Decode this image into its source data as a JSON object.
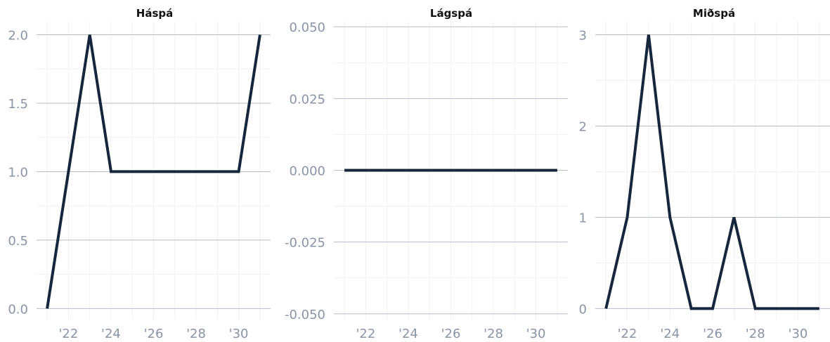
{
  "chart_data": [
    {
      "type": "line",
      "title": "Háspá",
      "x": [
        2021,
        2022,
        2023,
        2024,
        2025,
        2026,
        2027,
        2028,
        2029,
        2030,
        2031
      ],
      "series": [
        {
          "values": [
            0,
            1,
            2,
            1,
            1,
            1,
            1,
            1,
            1,
            1,
            2
          ]
        }
      ],
      "xticks": [
        2022,
        2024,
        2026,
        2028,
        2030
      ],
      "xtick_labels": [
        "'22",
        "'24",
        "'26",
        "'28",
        "'30"
      ],
      "yticks": [
        0,
        0.5,
        1,
        1.5,
        2
      ],
      "ytick_labels": [
        "0.0",
        "0.5",
        "1.0",
        "1.5",
        "2.0"
      ],
      "xlim": [
        2020.5,
        2031.5
      ],
      "ylim": [
        -0.08,
        2.1
      ],
      "grid": true,
      "color": "#17263c"
    },
    {
      "type": "line",
      "title": "Lágspá",
      "x": [
        2021,
        2022,
        2023,
        2024,
        2025,
        2026,
        2027,
        2028,
        2029,
        2030,
        2031
      ],
      "series": [
        {
          "values": [
            0,
            0,
            0,
            0,
            0,
            0,
            0,
            0,
            0,
            0,
            0
          ]
        }
      ],
      "xticks": [
        2022,
        2024,
        2026,
        2028,
        2030
      ],
      "xtick_labels": [
        "'22",
        "'24",
        "'26",
        "'28",
        "'30"
      ],
      "yticks": [
        -0.05,
        -0.025,
        0,
        0.025,
        0.05
      ],
      "ytick_labels": [
        "-0.050",
        "-0.025",
        "0.000",
        "0.025",
        "0.050"
      ],
      "xlim": [
        2020.5,
        2031.5
      ],
      "ylim": [
        -0.052,
        0.052
      ],
      "grid": true,
      "color": "#17263c"
    },
    {
      "type": "line",
      "title": "Miðspá",
      "x": [
        2021,
        2022,
        2023,
        2024,
        2025,
        2026,
        2027,
        2028,
        2029,
        2030,
        2031
      ],
      "series": [
        {
          "values": [
            0,
            1,
            3,
            1,
            0,
            0,
            1,
            0,
            0,
            0,
            0
          ]
        }
      ],
      "xticks": [
        2022,
        2024,
        2026,
        2028,
        2030
      ],
      "xtick_labels": [
        "'22",
        "'24",
        "'26",
        "'28",
        "'30"
      ],
      "yticks": [
        0,
        1,
        2,
        3
      ],
      "ytick_labels": [
        "0",
        "1",
        "2",
        "3"
      ],
      "xlim": [
        2020.5,
        2031.5
      ],
      "ylim": [
        -0.12,
        3.15
      ],
      "grid": true,
      "color": "#17263c"
    }
  ]
}
